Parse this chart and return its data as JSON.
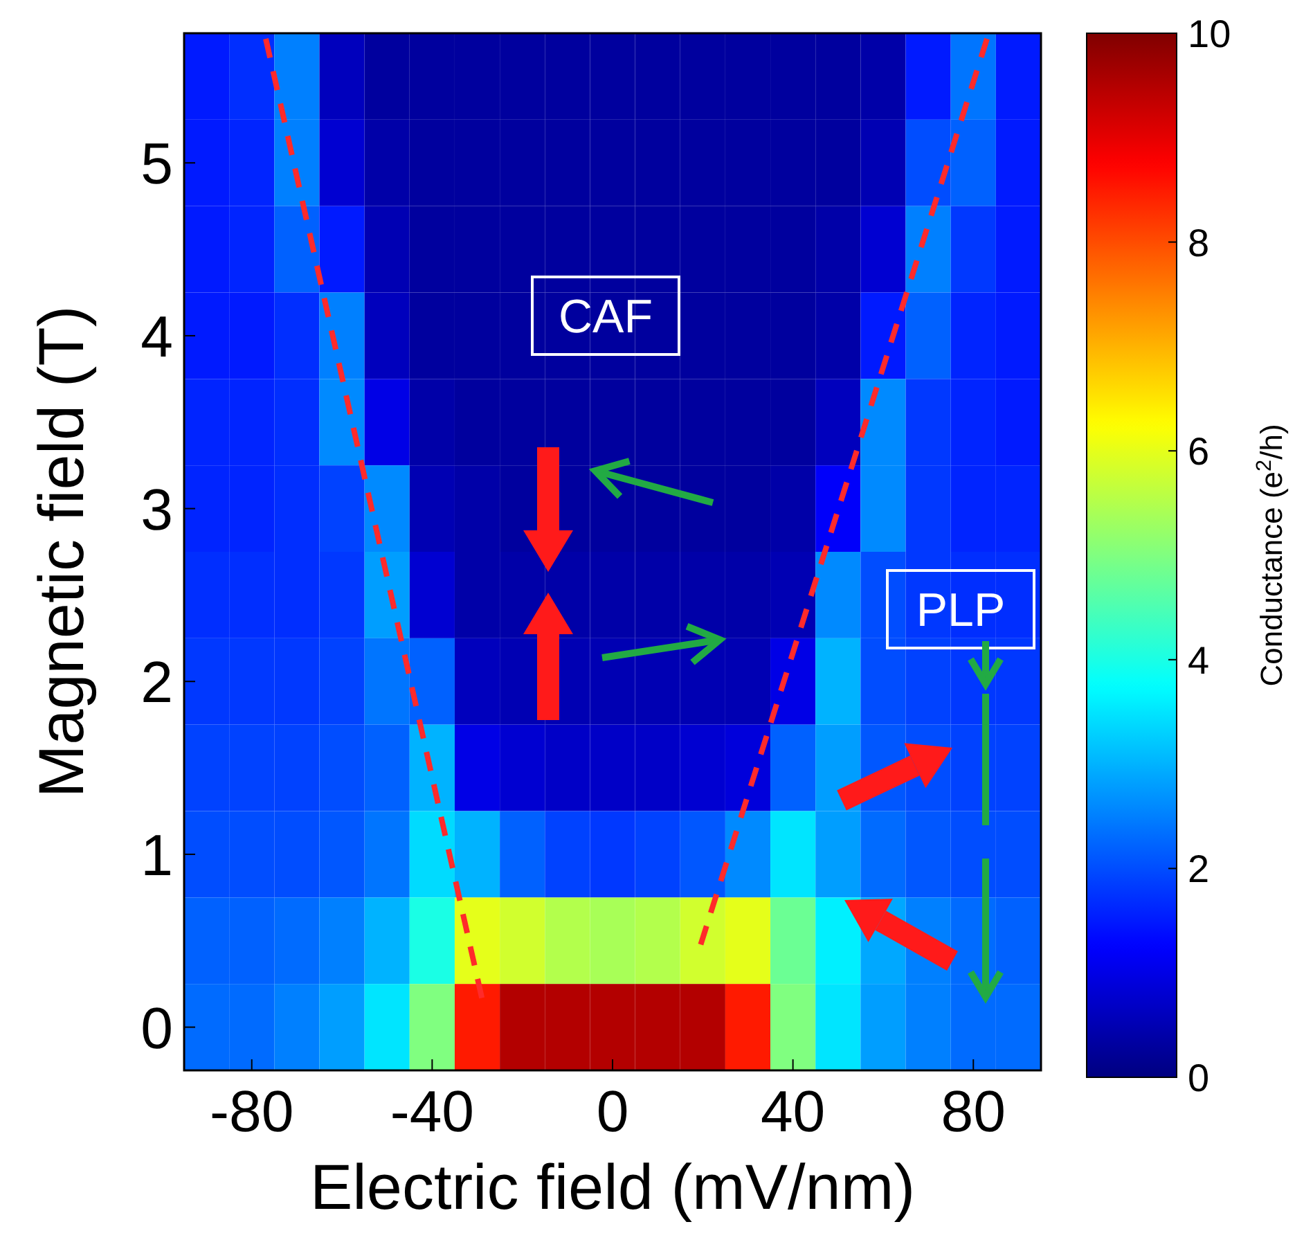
{
  "chart_data": {
    "type": "heatmap",
    "xlabel": "Electric field (mV/nm)",
    "ylabel": "Magnetic field (T)",
    "clabel": "Conductance (e$^{2}$/h)",
    "categories": [
      null,
      "-80",
      null,
      null,
      null,
      "-40",
      null,
      null,
      null,
      "0",
      null,
      null,
      null,
      "40",
      null,
      null,
      null,
      "80",
      null
    ],
    "y_categories": [
      null,
      "5",
      null,
      "4",
      null,
      "3",
      null,
      "2",
      null,
      "1",
      null,
      "0"
    ],
    "clim": [
      0,
      10
    ],
    "cticks": [
      0,
      2,
      4,
      6,
      8,
      10
    ],
    "cells": [
      [
        1.5,
        1.7,
        2.5,
        0.6,
        0.3,
        0.3,
        0.3,
        0.3,
        0.3,
        0.3,
        0.3,
        0.3,
        0.3,
        0.3,
        0.3,
        0.4,
        1.5,
        2.4,
        1.5
      ],
      [
        1.5,
        1.6,
        2.5,
        0.8,
        0.4,
        0.3,
        0.3,
        0.3,
        0.3,
        0.3,
        0.3,
        0.3,
        0.3,
        0.3,
        0.3,
        0.5,
        2.0,
        2.2,
        1.5
      ],
      [
        1.5,
        1.6,
        2.2,
        1.5,
        0.5,
        0.3,
        0.3,
        0.3,
        0.3,
        0.3,
        0.3,
        0.3,
        0.3,
        0.3,
        0.4,
        0.8,
        2.5,
        1.8,
        1.5
      ],
      [
        1.5,
        1.5,
        1.7,
        2.5,
        0.6,
        0.3,
        0.3,
        0.3,
        0.3,
        0.3,
        0.3,
        0.3,
        0.3,
        0.3,
        0.4,
        1.5,
        2.2,
        1.6,
        1.5
      ],
      [
        1.6,
        1.6,
        1.7,
        2.6,
        1.0,
        0.4,
        0.3,
        0.3,
        0.3,
        0.3,
        0.3,
        0.3,
        0.3,
        0.3,
        0.6,
        2.6,
        1.8,
        1.6,
        1.5
      ],
      [
        1.6,
        1.6,
        1.7,
        1.9,
        2.6,
        0.5,
        0.4,
        0.3,
        0.3,
        0.3,
        0.3,
        0.3,
        0.3,
        0.4,
        1.2,
        2.6,
        1.8,
        1.6,
        1.6
      ],
      [
        1.7,
        1.7,
        1.7,
        1.8,
        2.8,
        0.8,
        0.4,
        0.4,
        0.4,
        0.4,
        0.4,
        0.4,
        0.4,
        0.5,
        2.6,
        2.0,
        1.8,
        1.7,
        1.7
      ],
      [
        1.8,
        1.8,
        1.8,
        1.9,
        2.4,
        2.2,
        0.6,
        0.5,
        0.5,
        0.5,
        0.5,
        0.5,
        0.5,
        1.0,
        3.0,
        2.0,
        1.9,
        1.8,
        1.8
      ],
      [
        1.9,
        1.9,
        1.9,
        2.0,
        2.2,
        3.0,
        1.0,
        0.8,
        0.7,
        0.7,
        0.7,
        0.8,
        0.9,
        2.2,
        2.8,
        2.1,
        2.0,
        1.9,
        1.9
      ],
      [
        2.0,
        2.0,
        2.0,
        2.1,
        2.4,
        3.4,
        3.0,
        2.2,
        1.9,
        1.8,
        1.9,
        2.1,
        2.6,
        3.5,
        2.8,
        2.3,
        2.1,
        2.0,
        2.0
      ],
      [
        2.2,
        2.2,
        2.3,
        2.5,
        3.0,
        4.0,
        6.0,
        5.8,
        5.5,
        5.4,
        5.5,
        5.8,
        6.0,
        4.8,
        3.6,
        2.9,
        2.5,
        2.3,
        2.2
      ],
      [
        2.3,
        2.3,
        2.5,
        2.8,
        3.5,
        5.0,
        8.5,
        9.5,
        9.5,
        9.5,
        9.5,
        9.5,
        8.5,
        5.0,
        3.5,
        2.8,
        2.5,
        2.3,
        2.3
      ]
    ],
    "annotations": [
      "CAF",
      "PLP"
    ]
  }
}
